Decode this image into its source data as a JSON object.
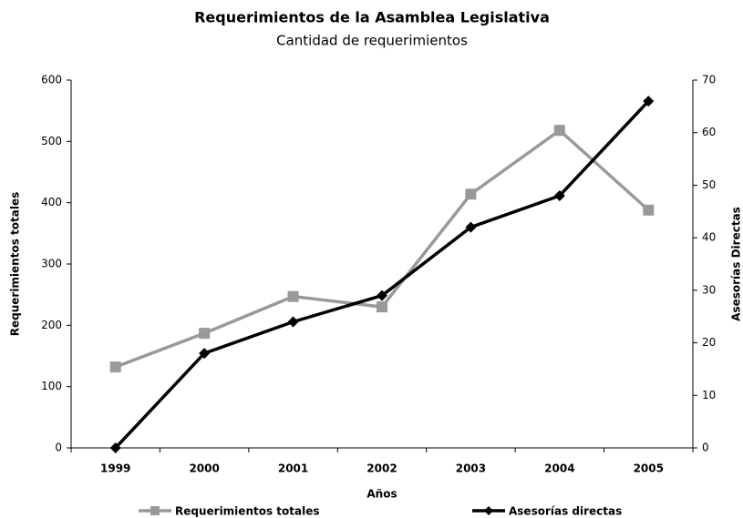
{
  "chart_data": {
    "type": "line",
    "title": "Requerimientos de la Asamblea Legislativa",
    "subtitle": "Cantidad de requerimientos",
    "x_label": "Años",
    "y_label": "Requerimientos totales",
    "y2_label": "Asesorías Directas",
    "categories": [
      "1999",
      "2000",
      "2001",
      "2002",
      "2003",
      "2004",
      "2005"
    ],
    "series": [
      {
        "name": "Requerimientos totales",
        "color": "#999999",
        "marker": "square",
        "values": [
          132,
          187,
          247,
          230,
          414,
          518,
          388
        ]
      },
      {
        "name": "Asesorías directas",
        "color": "#000000",
        "marker": "diamond",
        "axis": "y2",
        "values": [
          0,
          18,
          24,
          29,
          42,
          48,
          66
        ]
      }
    ],
    "ylim": [
      0,
      600
    ],
    "yticks": [
      0,
      100,
      200,
      300,
      400,
      500,
      600
    ],
    "y2lim": [
      0,
      70
    ],
    "y2ticks": [
      0,
      10,
      20,
      30,
      40,
      50,
      60,
      70
    ],
    "grid": false
  }
}
